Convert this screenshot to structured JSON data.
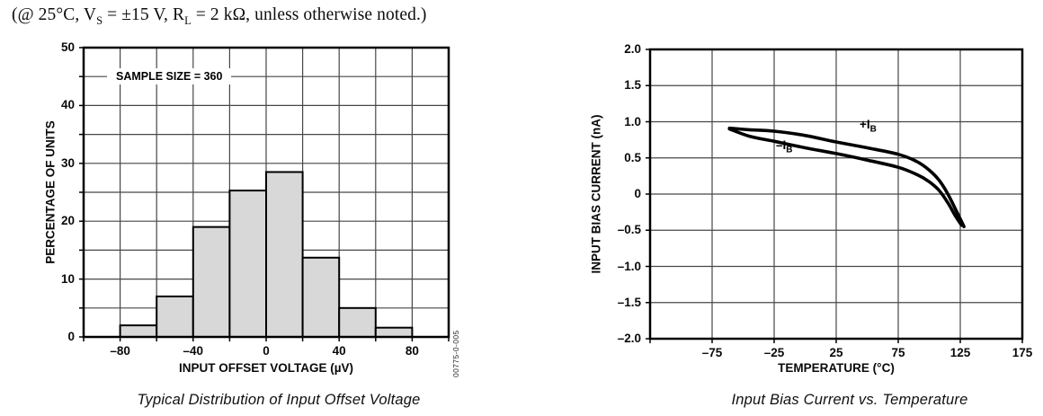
{
  "header": {
    "segments": [
      {
        "text": "(@ 25°C, V"
      },
      {
        "text": "S",
        "sub": true
      },
      {
        "text": " = ±15 V, R"
      },
      {
        "text": "L",
        "sub": true
      },
      {
        "text": " = 2 kΩ, unless otherwise noted.)"
      }
    ]
  },
  "figures": [
    {
      "figure_number": "00775-0-005",
      "y_tick_labels": [
        "0",
        "10",
        "20",
        "30",
        "40",
        "50"
      ],
      "x_tick_labels": [
        "–80",
        "–40",
        "0",
        "40",
        "80"
      ]
    },
    {
      "y_tick_labels": [
        "–2.0",
        "–1.5",
        "–1.0",
        "–0.5",
        "0",
        "0.5",
        "1.0",
        "1.5",
        "2.0"
      ],
      "x_tick_labels": [
        "–75",
        "–25",
        "25",
        "75",
        "125",
        "175"
      ],
      "curve_labels": [
        {
          "text": "+I",
          "sub": "B"
        },
        {
          "text": "–I",
          "sub": "B"
        }
      ]
    }
  ],
  "chart_data": [
    {
      "type": "bar",
      "title": "Typical Distribution of Input Offset Voltage",
      "xlabel": "INPUT OFFSET VOLTAGE (µV)",
      "ylabel": "PERCENTAGE OF UNITS",
      "annotation": "SAMPLE SIZE = 360",
      "bin_edges": [
        -80,
        -60,
        -40,
        -20,
        0,
        20,
        40,
        60,
        80
      ],
      "values": [
        2,
        7,
        19,
        25.3,
        28.5,
        13.7,
        5,
        1.6
      ],
      "xlim": [
        -100,
        100
      ],
      "ylim": [
        0,
        50
      ],
      "x_ticks": [
        -80,
        -40,
        0,
        40,
        80
      ],
      "y_ticks": [
        0,
        10,
        20,
        30,
        40,
        50
      ],
      "x_grid_step": 20,
      "y_grid_step": 5,
      "grid": true,
      "legend": "none",
      "bar_fill": "#d8d8d8"
    },
    {
      "type": "line",
      "title": "Input Bias Current vs. Temperature",
      "xlabel": "TEMPERATURE (°C)",
      "ylabel": "INPUT BIAS CURRENT (nA)",
      "xlim": [
        -125,
        175
      ],
      "ylim": [
        -2.0,
        2.0
      ],
      "x_ticks": [
        -75,
        -25,
        25,
        75,
        125,
        175
      ],
      "y_ticks": [
        -2.0,
        -1.5,
        -1.0,
        -0.5,
        0,
        0.5,
        1.0,
        1.5,
        2.0
      ],
      "x_grid_step": 50,
      "y_grid_step": 0.5,
      "grid": true,
      "legend": "inline-annotations",
      "series": [
        {
          "name": "+IB",
          "points": [
            [
              -61,
              0.91
            ],
            [
              -45,
              0.89
            ],
            [
              -25,
              0.87
            ],
            [
              0,
              0.81
            ],
            [
              25,
              0.72
            ],
            [
              50,
              0.64
            ],
            [
              75,
              0.55
            ],
            [
              90,
              0.45
            ],
            [
              100,
              0.33
            ],
            [
              108,
              0.19
            ],
            [
              115,
              0.0
            ],
            [
              122,
              -0.24
            ],
            [
              128,
              -0.45
            ]
          ]
        },
        {
          "name": "-IB",
          "points": [
            [
              -61,
              0.9
            ],
            [
              -45,
              0.8
            ],
            [
              -25,
              0.73
            ],
            [
              0,
              0.64
            ],
            [
              25,
              0.56
            ],
            [
              50,
              0.47
            ],
            [
              75,
              0.37
            ],
            [
              90,
              0.27
            ],
            [
              100,
              0.17
            ],
            [
              108,
              0.05
            ],
            [
              115,
              -0.12
            ],
            [
              121,
              -0.3
            ],
            [
              126,
              -0.43
            ]
          ]
        }
      ]
    }
  ]
}
